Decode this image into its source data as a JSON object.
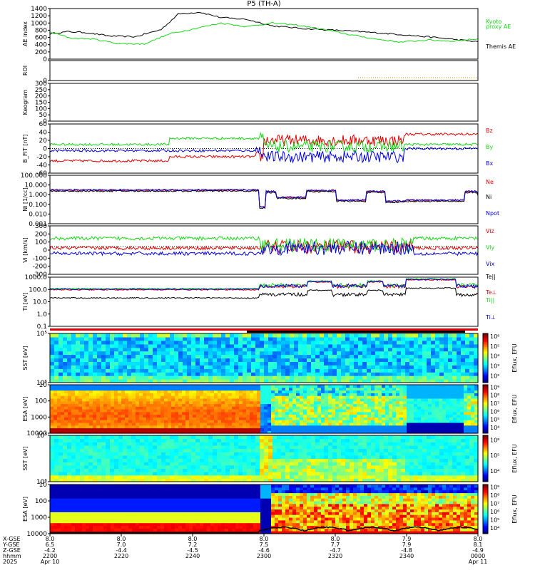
{
  "title": "P5 (TH-A)",
  "colors": {
    "black": "#000000",
    "red": "#e00000",
    "green": "#18d818",
    "blue": "#0000dd",
    "orange": "#e09000"
  },
  "chart_data": [
    {
      "type": "line",
      "name": "ae",
      "ylabel": "AE index",
      "ylim": [
        0,
        1400
      ],
      "ticks": [
        "0",
        "200",
        "400",
        "600",
        "800",
        "1000",
        "1200",
        "1400"
      ],
      "series": [
        {
          "name": "Themis AE",
          "color": "#000000",
          "x": [
            0,
            4,
            8,
            14,
            20,
            26,
            30,
            35,
            40,
            46,
            52,
            60,
            70,
            80,
            90,
            100
          ],
          "y": [
            700,
            760,
            740,
            640,
            620,
            820,
            1250,
            1300,
            1150,
            1100,
            920,
            840,
            780,
            700,
            600,
            480
          ]
        },
        {
          "name": "Kyoto proxy AE",
          "color": "#18d818",
          "x": [
            0,
            5,
            10,
            16,
            22,
            28,
            34,
            40,
            46,
            52,
            58,
            64,
            70,
            76,
            82,
            88,
            94,
            100
          ],
          "y": [
            750,
            580,
            560,
            430,
            420,
            700,
            850,
            1000,
            900,
            1000,
            940,
            820,
            680,
            560,
            470,
            530,
            500,
            560
          ]
        }
      ],
      "legend": {
        "kyoto": "Kyoto",
        "proxy": "proxy AE",
        "themis": "Themis AE"
      }
    },
    {
      "type": "line",
      "name": "roi",
      "ylabel": "ROI",
      "ylim": [
        0,
        1
      ],
      "ticks": [
        "0"
      ]
    },
    {
      "type": "heatmap",
      "name": "keogram",
      "ylabel": "Keogram",
      "ylim": [
        0,
        300
      ],
      "ticks": [
        "0",
        "50",
        "100",
        "150",
        "200",
        "250",
        "300"
      ]
    },
    {
      "type": "line",
      "name": "bfield",
      "ylabel": "B_FIT [nT]",
      "ylim": [
        -60,
        60
      ],
      "ticks": [
        "-60",
        "-40",
        "-20",
        "0",
        "20",
        "40",
        "60"
      ],
      "series": [
        {
          "name": "Bz",
          "color": "#e00000"
        },
        {
          "name": "By",
          "color": "#18d818"
        },
        {
          "name": "Bx",
          "color": "#0000dd"
        }
      ]
    },
    {
      "type": "line",
      "name": "density",
      "ylabel": "Ni [1/cc]",
      "log": true,
      "ticks": [
        "0.001",
        "0.010",
        "0.100",
        "1.000",
        "10.000",
        "100.000"
      ],
      "series": [
        {
          "name": "Ne",
          "color": "#e00000"
        },
        {
          "name": "Ni",
          "color": "#000000"
        },
        {
          "name": "Npot",
          "color": "#0000dd"
        }
      ]
    },
    {
      "type": "line",
      "name": "velocity",
      "ylabel": "Vi [km/s]",
      "ylim": [
        -400,
        300
      ],
      "ticks": [
        "-300",
        "-200",
        "-100",
        "0",
        "100",
        "200",
        "300"
      ],
      "series": [
        {
          "name": "Viz",
          "color": "#e00000"
        },
        {
          "name": "Viy",
          "color": "#18d818"
        },
        {
          "name": "Vix",
          "color": "#0000dd"
        }
      ]
    },
    {
      "type": "line",
      "name": "temp",
      "ylabel": "Ti [eV]",
      "log": true,
      "ticks": [
        "0.1",
        "1.0",
        "10.0",
        "100.0",
        "1000.0"
      ],
      "series": [
        {
          "name": "Te||",
          "color": "#000000"
        },
        {
          "name": "Te⊥",
          "color": "#e00000"
        },
        {
          "name": "Ti||",
          "color": "#18d818"
        },
        {
          "name": "Ti⊥",
          "color": "#0000dd"
        }
      ]
    },
    {
      "type": "heatmap",
      "name": "sst_e",
      "ylabel": "SST [eV]",
      "ticks": [
        "10⁶",
        "10⁵"
      ],
      "cbar_ticks": [
        "10⁸",
        "10⁵",
        "10⁴",
        "10³",
        "10²"
      ],
      "cbar_label": "Eflux, EFU"
    },
    {
      "type": "heatmap",
      "name": "esa_e",
      "ylabel": "ESA [eV]",
      "ticks": [
        "10000",
        "1000",
        "100",
        "10"
      ],
      "cbar_ticks": [
        "10⁹",
        "10⁸",
        "10⁷",
        "10⁶",
        "10⁵",
        "10⁴"
      ],
      "cbar_label": "Eflux, EFU"
    },
    {
      "type": "heatmap",
      "name": "sst_i",
      "ylabel": "SST [eV]",
      "ticks": [
        "10⁶",
        "10⁵"
      ],
      "cbar_ticks": [
        "10⁸",
        "10⁵",
        "10⁴"
      ],
      "cbar_label": "Eflux, EFU"
    },
    {
      "type": "heatmap",
      "name": "esa_i",
      "ylabel": "ESA [eV]",
      "ticks": [
        "10000",
        "1000",
        "100",
        "10"
      ],
      "cbar_ticks": [
        "10⁹",
        "10⁸",
        "10⁷",
        "10⁶",
        "10⁵",
        "10⁴"
      ],
      "cbar_label": "Eflux, EFU"
    }
  ],
  "xaxis": {
    "row_labels": [
      "X-GSE",
      "Y-GSE",
      "Z-GSE",
      "hhmm",
      "2025"
    ],
    "ticks": [
      {
        "x": "8.0",
        "y": "6.5",
        "z": "-4.2",
        "t": "2200",
        "d": "Apr 10"
      },
      {
        "x": "8.0",
        "y": "7.0",
        "z": "-4.4",
        "t": "2220",
        "d": ""
      },
      {
        "x": "8.0",
        "y": "7.2",
        "z": "-4.5",
        "t": "2240",
        "d": ""
      },
      {
        "x": "8.0",
        "y": "7.5",
        "z": "-4.6",
        "t": "2300",
        "d": ""
      },
      {
        "x": "8.0",
        "y": "7.7",
        "z": "-4.7",
        "t": "2320",
        "d": ""
      },
      {
        "x": "7.9",
        "y": "7.9",
        "z": "-4.8",
        "t": "2340",
        "d": ""
      },
      {
        "x": "8.0",
        "y": "8.1",
        "z": "-4.9",
        "t": "0000",
        "d": "Apr 11"
      }
    ]
  }
}
